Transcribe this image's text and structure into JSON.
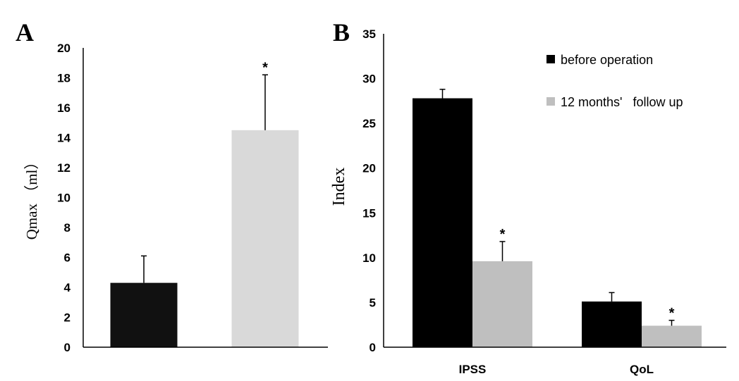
{
  "chart_data": [
    {
      "type": "bar",
      "panel": "A",
      "ylabel": "Qmax （ml）",
      "ylim": [
        0,
        20
      ],
      "yticks": [
        0,
        2,
        4,
        6,
        8,
        10,
        12,
        14,
        16,
        18,
        20
      ],
      "bars": [
        {
          "value": 4.3,
          "error": 1.8,
          "color": "#111111",
          "annotation": ""
        },
        {
          "value": 14.5,
          "error": 3.7,
          "color": "#d9d9d9",
          "annotation": "*"
        }
      ]
    },
    {
      "type": "bar",
      "panel": "B",
      "ylabel": "Index",
      "ylim": [
        0,
        35
      ],
      "yticks": [
        0,
        5,
        10,
        15,
        20,
        25,
        30,
        35
      ],
      "categories": [
        "IPSS",
        "QoL"
      ],
      "legend": {
        "position": "top-right"
      },
      "series": [
        {
          "name": "before operation",
          "color": "#000000",
          "values": [
            27.8,
            5.1
          ],
          "errors": [
            1.0,
            1.0
          ],
          "annotations": [
            "",
            ""
          ]
        },
        {
          "name": "12 months'   follow up",
          "color": "#bfbfbf",
          "values": [
            9.6,
            2.4
          ],
          "errors": [
            2.2,
            0.6
          ],
          "annotations": [
            "*",
            "*"
          ]
        }
      ]
    }
  ]
}
